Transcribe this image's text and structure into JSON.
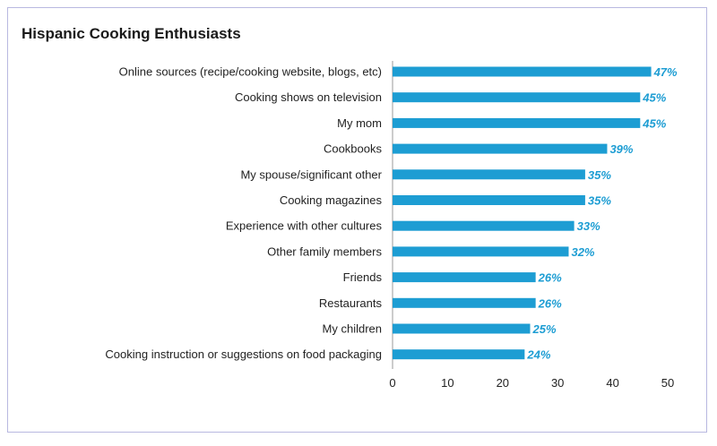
{
  "chart_data": {
    "type": "bar",
    "orientation": "horizontal",
    "title": "Hispanic Cooking Enthusiasts",
    "categories": [
      "Online sources (recipe/cooking website, blogs, etc)",
      "Cooking shows on television",
      "My mom",
      "Cookbooks",
      "My spouse/significant other",
      "Cooking magazines",
      "Experience with other cultures",
      "Other family members",
      "Friends",
      "Restaurants",
      "My children",
      "Cooking instruction or suggestions on food packaging"
    ],
    "values": [
      47,
      45,
      45,
      39,
      35,
      35,
      33,
      32,
      26,
      26,
      25,
      24
    ],
    "value_labels": [
      "47%",
      "45%",
      "45%",
      "39%",
      "35%",
      "35%",
      "33%",
      "32%",
      "26%",
      "26%",
      "25%",
      "24%"
    ],
    "x_ticks": [
      "0",
      "10",
      "20",
      "30",
      "40",
      "50"
    ],
    "xlim": [
      0,
      50
    ],
    "grid": false,
    "legend": "none",
    "colors": {
      "bar": "#1d9dd3",
      "value_label": "#1d9dd3",
      "axis": "#999999"
    }
  }
}
